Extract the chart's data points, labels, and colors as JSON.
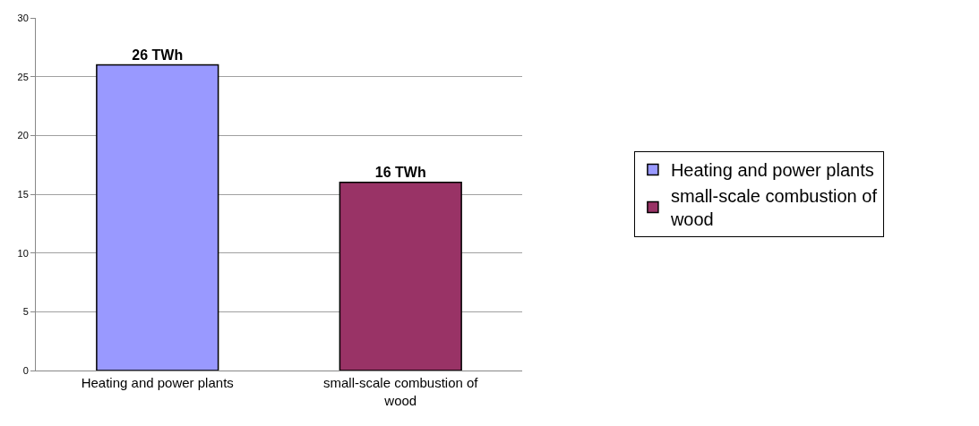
{
  "chart_data": {
    "type": "bar",
    "categories": [
      "Heating and power plants",
      "small-scale combustion of wood"
    ],
    "series": [
      {
        "name": "Heating and power plants",
        "color": "#9999ff",
        "values": [
          26,
          null
        ],
        "value_labels": [
          "26 TWh",
          null
        ]
      },
      {
        "name": "small-scale combustion of wood",
        "color": "#993366",
        "values": [
          null,
          16
        ],
        "value_labels": [
          null,
          "16 TWh"
        ]
      }
    ],
    "ylim": [
      0,
      30
    ],
    "yticks": [
      0,
      5,
      10,
      15,
      20,
      25,
      30
    ],
    "grid": "y",
    "legend": "right"
  }
}
